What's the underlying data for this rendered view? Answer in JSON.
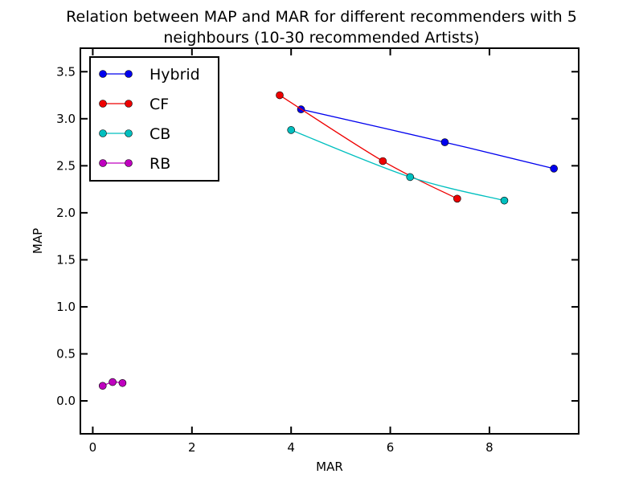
{
  "chart_data": {
    "type": "line",
    "title_line1": "Relation between MAP and MAR for different recommenders with 5",
    "title_line2": "neighbours (10-30 recommended Artists)",
    "xlabel": "MAR",
    "ylabel": "MAP",
    "xlim": [
      -0.25,
      9.8
    ],
    "ylim": [
      -0.35,
      3.75
    ],
    "xticks": [
      0,
      2,
      4,
      6,
      8
    ],
    "xtick_labels": [
      "0",
      "2",
      "4",
      "6",
      "8"
    ],
    "yticks": [
      0.0,
      0.5,
      1.0,
      1.5,
      2.0,
      2.5,
      3.0,
      3.5
    ],
    "ytick_labels": [
      "0.0",
      "0.5",
      "1.0",
      "1.5",
      "2.0",
      "2.5",
      "3.0",
      "3.5"
    ],
    "grid": false,
    "legend_position": "top-left",
    "series": [
      {
        "name": "Hybrid",
        "color": "#0000ee",
        "x": [
          4.2,
          7.1,
          9.3
        ],
        "y": [
          3.1,
          2.75,
          2.47
        ]
      },
      {
        "name": "CF",
        "color": "#ee0000",
        "x": [
          3.77,
          5.85,
          7.35
        ],
        "y": [
          3.25,
          2.55,
          2.15
        ]
      },
      {
        "name": "CB",
        "color": "#00bfbf",
        "x": [
          4.0,
          6.4,
          8.3
        ],
        "y": [
          2.88,
          2.38,
          2.13
        ]
      },
      {
        "name": "RB",
        "color": "#bf00bf",
        "x": [
          0.2,
          0.4,
          0.6
        ],
        "y": [
          0.16,
          0.2,
          0.19
        ]
      }
    ]
  }
}
